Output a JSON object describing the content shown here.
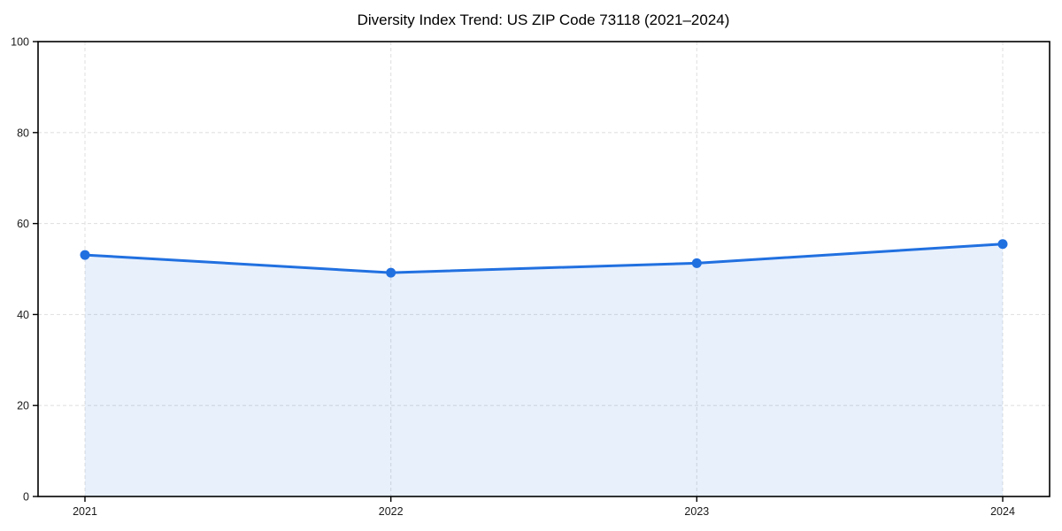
{
  "figure": {
    "background": "#ffffff"
  },
  "chart_data": {
    "type": "line",
    "title": "Diversity Index Trend: US ZIP Code 73118 (2021–2024)",
    "x": [
      "2021",
      "2022",
      "2023",
      "2024"
    ],
    "series": [
      {
        "name": "Diversity Index",
        "values": [
          53.1,
          49.2,
          51.3,
          55.5
        ]
      }
    ],
    "xlabel": "",
    "ylabel": "",
    "ylim": [
      0,
      100
    ],
    "yticks": [
      0,
      20,
      40,
      60,
      80,
      100
    ],
    "grid": true,
    "grid_style": "dashed",
    "legend": "none",
    "area_fill": true,
    "marker": "circle",
    "colors": {
      "line": "#2170e0",
      "marker": "#2170e0",
      "fill": "rgba(33, 112, 224, 0.10)",
      "grid": "#e2e2e2",
      "axis": "#000000",
      "tick_label": "#1a1a1a",
      "title": "#000000",
      "background": "#ffffff"
    }
  }
}
